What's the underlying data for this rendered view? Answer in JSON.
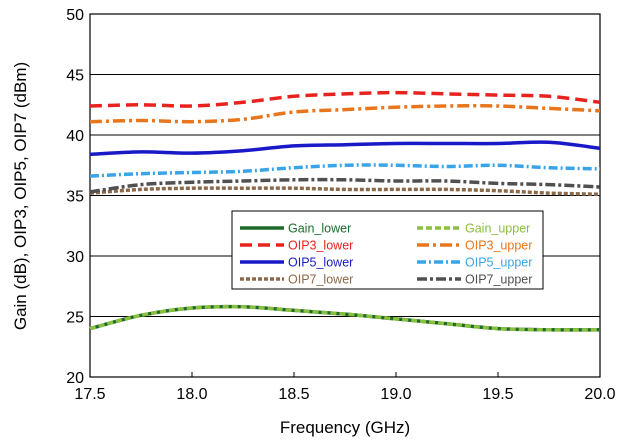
{
  "chart_data": {
    "type": "line",
    "xlabel": "Frequency (GHz)",
    "ylabel": "Gain (dB), OIP3, OIP5, OIP7 (dBm)",
    "xlim": [
      17.5,
      20.0
    ],
    "ylim": [
      20,
      50
    ],
    "xticks": [
      "17.5",
      "18.0",
      "18.5",
      "19.0",
      "19.5",
      "20.0"
    ],
    "yticks": [
      "20",
      "25",
      "30",
      "35",
      "40",
      "45",
      "50"
    ],
    "grid": "horizontal",
    "legend_position": "center-right",
    "series": [
      {
        "name": "Gain_lower",
        "color": "#1e6b2c",
        "dash": "solid",
        "width": 3.5,
        "x": [
          17.5,
          17.75,
          18.0,
          18.25,
          18.5,
          18.75,
          19.0,
          19.25,
          19.5,
          19.75,
          20.0
        ],
        "y": [
          24.0,
          25.1,
          25.7,
          25.8,
          25.5,
          25.2,
          24.8,
          24.4,
          24.0,
          23.9,
          23.9
        ]
      },
      {
        "name": "Gain_upper",
        "color": "#8bbf3f",
        "dash": "6,3",
        "width": 3.5,
        "x": [
          17.5,
          17.75,
          18.0,
          18.25,
          18.5,
          18.75,
          19.0,
          19.25,
          19.5,
          19.75,
          20.0
        ],
        "y": [
          24.0,
          25.1,
          25.7,
          25.8,
          25.5,
          25.2,
          24.8,
          24.4,
          24.0,
          23.9,
          23.9
        ]
      },
      {
        "name": "OIP3_lower",
        "color": "#e8231e",
        "dash": "12,6",
        "width": 3.5,
        "x": [
          17.5,
          17.75,
          18.0,
          18.25,
          18.5,
          18.75,
          19.0,
          19.25,
          19.5,
          19.75,
          20.0
        ],
        "y": [
          42.4,
          42.5,
          42.4,
          42.7,
          43.2,
          43.4,
          43.5,
          43.4,
          43.3,
          43.2,
          42.7
        ]
      },
      {
        "name": "OIP3_upper",
        "color": "#e8761e",
        "dash": "12,4,3,4",
        "width": 3.5,
        "x": [
          17.5,
          17.75,
          18.0,
          18.25,
          18.5,
          18.75,
          19.0,
          19.25,
          19.5,
          19.75,
          20.0
        ],
        "y": [
          41.1,
          41.2,
          41.1,
          41.3,
          41.9,
          42.1,
          42.3,
          42.4,
          42.4,
          42.2,
          42.0
        ]
      },
      {
        "name": "OIP5_lower",
        "color": "#1919c8",
        "dash": "solid",
        "width": 3.5,
        "x": [
          17.5,
          17.75,
          18.0,
          18.25,
          18.5,
          18.75,
          19.0,
          19.25,
          19.5,
          19.75,
          20.0
        ],
        "y": [
          38.4,
          38.6,
          38.5,
          38.7,
          39.1,
          39.2,
          39.3,
          39.3,
          39.3,
          39.4,
          38.9
        ]
      },
      {
        "name": "OIP5_upper",
        "color": "#3aa4e8",
        "dash": "9,3,2,3",
        "width": 3.5,
        "x": [
          17.5,
          17.75,
          18.0,
          18.25,
          18.5,
          18.75,
          19.0,
          19.25,
          19.5,
          19.75,
          20.0
        ],
        "y": [
          36.6,
          36.8,
          36.9,
          37.0,
          37.3,
          37.5,
          37.5,
          37.4,
          37.5,
          37.3,
          37.2
        ]
      },
      {
        "name": "OIP7_lower",
        "color": "#8a6a4a",
        "dash": "4,2",
        "width": 3.5,
        "x": [
          17.5,
          17.75,
          18.0,
          18.25,
          18.5,
          18.75,
          19.0,
          19.25,
          19.5,
          19.75,
          20.0
        ],
        "y": [
          35.2,
          35.5,
          35.6,
          35.6,
          35.6,
          35.5,
          35.5,
          35.5,
          35.4,
          35.2,
          35.1
        ]
      },
      {
        "name": "OIP7_upper",
        "color": "#505050",
        "dash": "10,3,3,3",
        "width": 3.5,
        "x": [
          17.5,
          17.75,
          18.0,
          18.25,
          18.5,
          18.75,
          19.0,
          19.25,
          19.5,
          19.75,
          20.0
        ],
        "y": [
          35.3,
          35.9,
          36.1,
          36.2,
          36.3,
          36.3,
          36.2,
          36.2,
          36.0,
          35.9,
          35.7
        ]
      }
    ]
  }
}
